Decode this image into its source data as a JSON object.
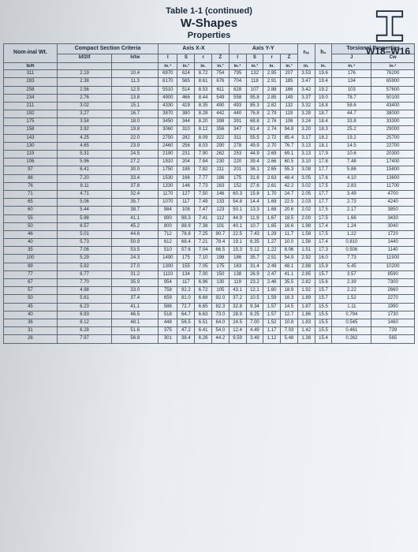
{
  "header": {
    "title1": "Table 1-1 (continued)",
    "title2": "W-Shapes",
    "title3": "Properties",
    "section_label": "W18–W16"
  },
  "columns": {
    "compact": "Compact Section Criteria",
    "axis_xx": "Axis X-X",
    "axis_yy": "Axis Y-Y",
    "rts": "rₜₛ",
    "h0": "h₀",
    "torsional": "Torsional Properties",
    "wt": "Nom-inal Wt.",
    "bf2tf": "bf/2tf",
    "htw": "h/tw",
    "I": "I",
    "S": "S",
    "r": "r",
    "Z": "Z",
    "J": "J",
    "Cw": "Cw",
    "lbft": "lb/ft",
    "in4": "in.⁴",
    "in3": "in.³",
    "in": "in.",
    "in6": "in.⁶"
  },
  "rows": [
    [
      "311",
      "2.19",
      "10.4",
      "6970",
      "624",
      "8.72",
      "754",
      "795",
      "132",
      "2.95",
      "207",
      "3.53",
      "19.6",
      "176",
      "76200"
    ],
    [
      "283",
      "2.38",
      "11.3",
      "6170",
      "565",
      "8.61",
      "676",
      "704",
      "118",
      "2.91",
      "185",
      "3.47",
      "19.4",
      "134",
      "65900"
    ],
    [
      "258",
      "2.56",
      "12.5",
      "5510",
      "514",
      "8.53",
      "611",
      "628",
      "107",
      "2.88",
      "166",
      "3.42",
      "19.2",
      "103",
      "57600"
    ],
    [
      "234",
      "2.76",
      "13.8",
      "4900",
      "466",
      "8.44",
      "549",
      "558",
      "95.8",
      "2.85",
      "149",
      "3.37",
      "19.0",
      "78.7",
      "50100"
    ],
    [
      "211",
      "3.02",
      "15.1",
      "4330",
      "419",
      "8.35",
      "490",
      "493",
      "85.3",
      "2.82",
      "132",
      "3.32",
      "18.8",
      "58.6",
      "43400"
    ],
    [
      "192",
      "3.27",
      "16.7",
      "3870",
      "380",
      "8.28",
      "442",
      "440",
      "76.8",
      "2.79",
      "119",
      "3.28",
      "18.7",
      "44.7",
      "38000"
    ],
    [
      "175",
      "3.58",
      "18.0",
      "3450",
      "344",
      "8.20",
      "398",
      "391",
      "68.8",
      "2.76",
      "106",
      "3.24",
      "18.4",
      "33.8",
      "33300"
    ],
    [
      "158",
      "3.92",
      "19.8",
      "3060",
      "310",
      "8.12",
      "356",
      "347",
      "61.4",
      "2.74",
      "94.8",
      "3.20",
      "18.3",
      "25.2",
      "29000"
    ],
    [
      "143",
      "4.25",
      "22.0",
      "2750",
      "282",
      "8.09",
      "322",
      "311",
      "55.5",
      "2.72",
      "85.4",
      "3.17",
      "18.2",
      "19.2",
      "25700"
    ],
    [
      "130",
      "4.65",
      "23.9",
      "2460",
      "256",
      "8.03",
      "290",
      "278",
      "49.9",
      "2.70",
      "76.7",
      "3.13",
      "18.1",
      "14.5",
      "22700"
    ],
    [
      "119",
      "5.31",
      "24.5",
      "2190",
      "231",
      "7.90",
      "262",
      "253",
      "44.9",
      "2.69",
      "69.1",
      "3.13",
      "17.9",
      "10.6",
      "20300"
    ],
    [
      "106",
      "5.96",
      "27.2",
      "1910",
      "204",
      "7.84",
      "230",
      "220",
      "39.4",
      "2.66",
      "60.5",
      "3.10",
      "17.8",
      "7.48",
      "17400"
    ],
    [
      "97",
      "6.41",
      "30.0",
      "1750",
      "188",
      "7.82",
      "211",
      "201",
      "36.1",
      "2.65",
      "55.3",
      "3.08",
      "17.7",
      "5.86",
      "15800"
    ],
    [
      "86",
      "7.20",
      "33.4",
      "1530",
      "166",
      "7.77",
      "186",
      "175",
      "31.6",
      "2.63",
      "48.4",
      "3.05",
      "17.6",
      "4.10",
      "13600"
    ],
    [
      "76",
      "8.11",
      "37.8",
      "1330",
      "146",
      "7.73",
      "163",
      "152",
      "27.6",
      "2.61",
      "42.2",
      "3.02",
      "17.5",
      "2.83",
      "11700"
    ],
    [
      "71",
      "4.71",
      "32.4",
      "1170",
      "127",
      "7.50",
      "146",
      "60.3",
      "15.8",
      "1.70",
      "24.7",
      "2.05",
      "17.7",
      "3.49",
      "4700"
    ],
    [
      "65",
      "5.06",
      "35.7",
      "1070",
      "117",
      "7.49",
      "133",
      "54.8",
      "14.4",
      "1.69",
      "22.5",
      "2.03",
      "17.7",
      "2.73",
      "4240"
    ],
    [
      "60",
      "5.44",
      "38.7",
      "984",
      "108",
      "7.47",
      "123",
      "50.1",
      "13.3",
      "1.68",
      "20.6",
      "2.02",
      "17.5",
      "2.17",
      "3850"
    ],
    [
      "55",
      "5.98",
      "41.1",
      "890",
      "98.3",
      "7.41",
      "112",
      "44.9",
      "11.9",
      "1.67",
      "18.5",
      "2.00",
      "17.5",
      "1.66",
      "3430"
    ],
    [
      "50",
      "6.57",
      "45.2",
      "800",
      "88.9",
      "7.38",
      "101",
      "40.1",
      "10.7",
      "1.65",
      "16.6",
      "1.98",
      "17.4",
      "1.24",
      "3040"
    ],
    [
      "46",
      "5.01",
      "44.6",
      "712",
      "78.8",
      "7.25",
      "90.7",
      "22.5",
      "7.43",
      "1.29",
      "11.7",
      "1.58",
      "17.5",
      "1.22",
      "1720"
    ],
    [
      "40",
      "5.73",
      "50.9",
      "612",
      "68.4",
      "7.21",
      "78.4",
      "19.1",
      "6.35",
      "1.27",
      "10.0",
      "1.56",
      "17.4",
      "0.810",
      "1440"
    ],
    [
      "35",
      "7.06",
      "53.5",
      "510",
      "57.6",
      "7.04",
      "66.5",
      "15.3",
      "5.12",
      "1.22",
      "8.06",
      "1.51",
      "17.3",
      "0.506",
      "1140"
    ],
    [
      "100",
      "5.29",
      "24.3",
      "1490",
      "175",
      "7.10",
      "198",
      "186",
      "35.7",
      "2.51",
      "54.9",
      "2.92",
      "16.0",
      "7.73",
      "11900"
    ],
    [
      "89",
      "5.92",
      "27.0",
      "1300",
      "155",
      "7.05",
      "175",
      "163",
      "31.4",
      "2.49",
      "48.1",
      "2.88",
      "15.9",
      "5.45",
      "10200"
    ],
    [
      "77",
      "6.77",
      "31.2",
      "1110",
      "134",
      "7.00",
      "150",
      "138",
      "26.9",
      "2.47",
      "41.1",
      "2.85",
      "15.7",
      "3.57",
      "8590"
    ],
    [
      "67",
      "7.70",
      "35.9",
      "954",
      "117",
      "6.96",
      "130",
      "119",
      "23.2",
      "2.46",
      "35.5",
      "2.82",
      "15.6",
      "2.39",
      "7300"
    ],
    [
      "57",
      "4.98",
      "33.0",
      "758",
      "92.2",
      "6.72",
      "105",
      "43.1",
      "12.1",
      "1.60",
      "18.9",
      "1.92",
      "15.7",
      "2.22",
      "2660"
    ],
    [
      "50",
      "5.61",
      "37.4",
      "659",
      "81.0",
      "6.68",
      "92.0",
      "37.2",
      "10.5",
      "1.59",
      "16.3",
      "1.89",
      "15.7",
      "1.52",
      "2270"
    ],
    [
      "45",
      "6.23",
      "41.1",
      "586",
      "72.7",
      "6.65",
      "82.3",
      "32.8",
      "9.34",
      "1.57",
      "14.5",
      "1.87",
      "15.5",
      "1.11",
      "1990"
    ],
    [
      "40",
      "6.93",
      "46.5",
      "518",
      "64.7",
      "6.63",
      "73.0",
      "28.9",
      "8.25",
      "1.57",
      "12.7",
      "1.86",
      "15.5",
      "0.794",
      "1730"
    ],
    [
      "36",
      "8.12",
      "48.1",
      "448",
      "56.5",
      "6.51",
      "64.0",
      "24.5",
      "7.00",
      "1.52",
      "10.8",
      "1.83",
      "15.5",
      "0.545",
      "1460"
    ],
    [
      "31",
      "6.28",
      "51.6",
      "375",
      "47.2",
      "6.41",
      "54.0",
      "12.4",
      "4.49",
      "1.17",
      "7.03",
      "1.42",
      "15.5",
      "0.461",
      "739"
    ],
    [
      "26",
      "7.97",
      "56.8",
      "301",
      "38.4",
      "6.26",
      "44.2",
      "9.59",
      "3.49",
      "1.12",
      "5.48",
      "1.38",
      "15.4",
      "0.262",
      "565"
    ]
  ],
  "breaks": [
    15,
    20,
    23,
    27,
    32
  ]
}
